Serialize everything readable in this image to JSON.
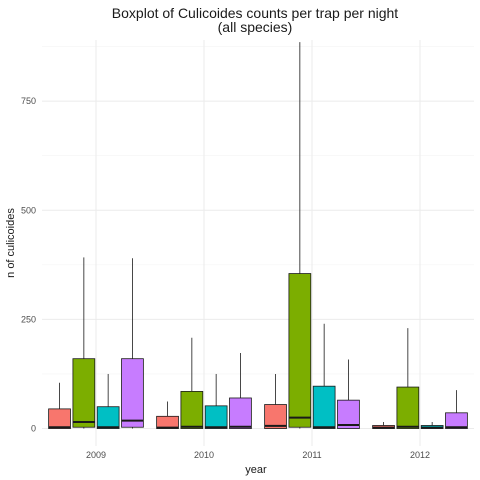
{
  "chart_data": {
    "type": "boxplot",
    "title_line1": "Boxplot of Culicoides counts per trap per night",
    "title_line2": "(all species)",
    "xlabel": "year",
    "ylabel": "n of culicoides",
    "categories": [
      "2009",
      "2010",
      "2011",
      "2012"
    ],
    "y_ticks": [
      0,
      250,
      500,
      750
    ],
    "ylim": [
      -40,
      890
    ],
    "grid": true,
    "legend": "none",
    "group_colors": [
      "#F8766D",
      "#7CAE00",
      "#00BFC4",
      "#C77CFF"
    ],
    "boxes": [
      [
        {
          "whisker_low": 0,
          "q1": 0,
          "median": 3,
          "q3": 45,
          "whisker_high": 105
        },
        {
          "whisker_low": 0,
          "q1": 3,
          "median": 15,
          "q3": 160,
          "whisker_high": 392
        },
        {
          "whisker_low": 0,
          "q1": 0,
          "median": 3,
          "q3": 50,
          "whisker_high": 125
        },
        {
          "whisker_low": 0,
          "q1": 3,
          "median": 18,
          "q3": 160,
          "whisker_high": 390
        }
      ],
      [
        {
          "whisker_low": 0,
          "q1": 0,
          "median": 2,
          "q3": 28,
          "whisker_high": 62
        },
        {
          "whisker_low": 0,
          "q1": 0,
          "median": 4,
          "q3": 85,
          "whisker_high": 208
        },
        {
          "whisker_low": 0,
          "q1": 0,
          "median": 3,
          "q3": 52,
          "whisker_high": 125
        },
        {
          "whisker_low": 0,
          "q1": 0,
          "median": 4,
          "q3": 70,
          "whisker_high": 173
        }
      ],
      [
        {
          "whisker_low": 0,
          "q1": 0,
          "median": 6,
          "q3": 55,
          "whisker_high": 125
        },
        {
          "whisker_low": 0,
          "q1": 3,
          "median": 25,
          "q3": 355,
          "whisker_high": 885
        },
        {
          "whisker_low": 0,
          "q1": 0,
          "median": 3,
          "q3": 97,
          "whisker_high": 240
        },
        {
          "whisker_low": 0,
          "q1": 0,
          "median": 8,
          "q3": 65,
          "whisker_high": 158
        }
      ],
      [
        {
          "whisker_low": 0,
          "q1": 0,
          "median": 2,
          "q3": 7,
          "whisker_high": 15
        },
        {
          "whisker_low": 0,
          "q1": 0,
          "median": 4,
          "q3": 95,
          "whisker_high": 230
        },
        {
          "whisker_low": 0,
          "q1": 0,
          "median": 2,
          "q3": 7,
          "whisker_high": 15
        },
        {
          "whisker_low": 0,
          "q1": 0,
          "median": 3,
          "q3": 36,
          "whisker_high": 88
        }
      ]
    ]
  }
}
